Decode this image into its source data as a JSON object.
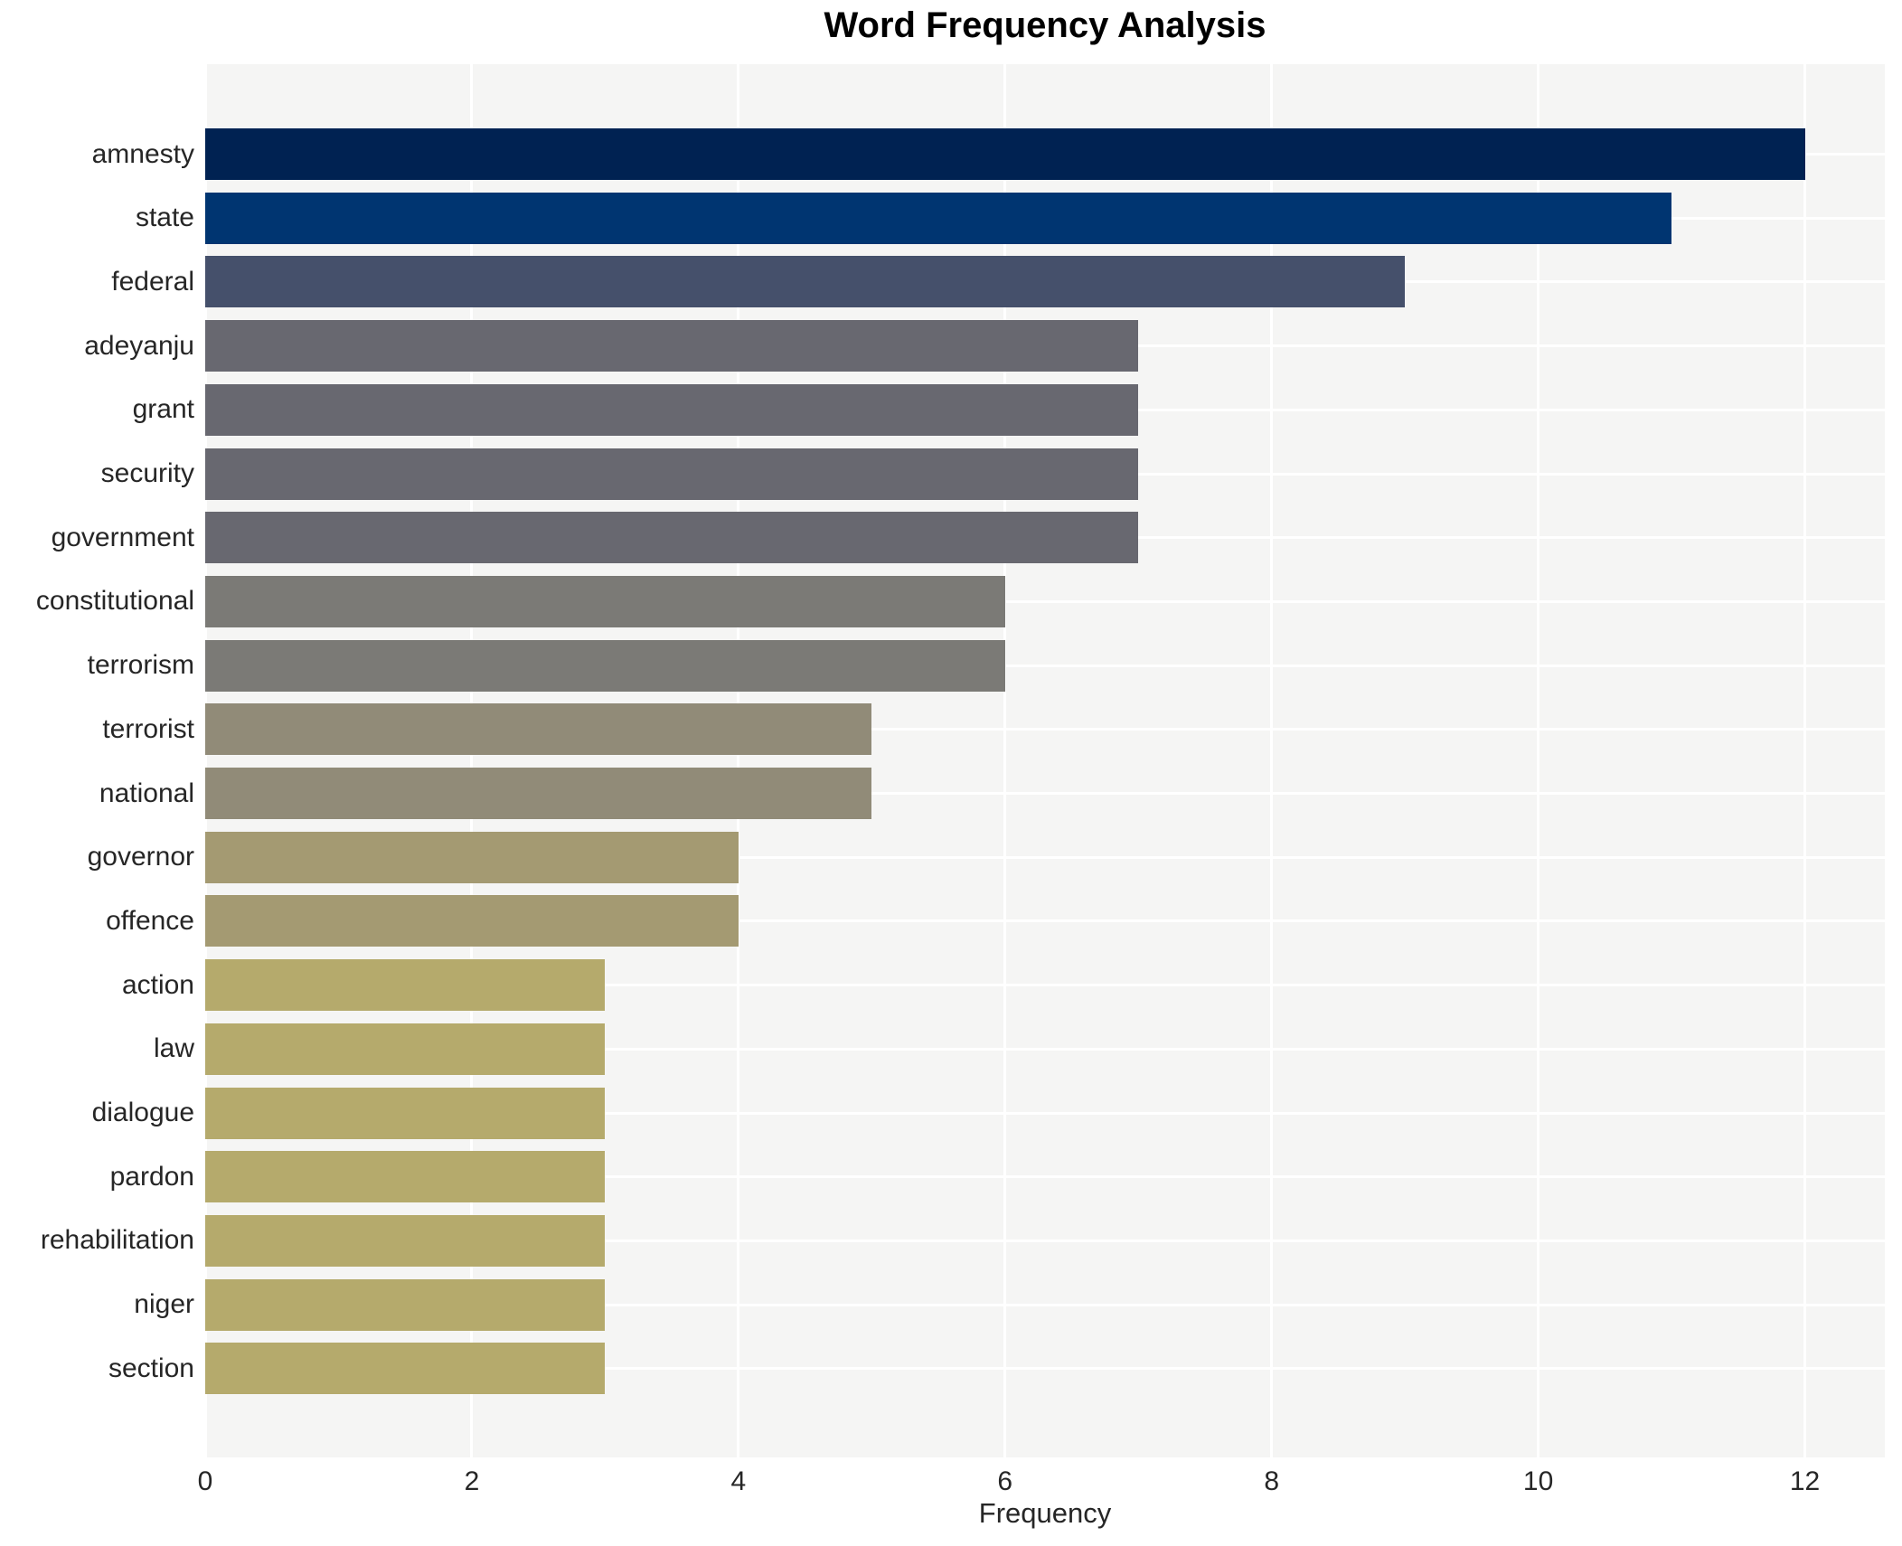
{
  "chart_data": {
    "type": "bar",
    "orientation": "horizontal",
    "title": "Word Frequency Analysis",
    "xlabel": "Frequency",
    "ylabel": "",
    "categories": [
      "amnesty",
      "state",
      "federal",
      "adeyanju",
      "grant",
      "security",
      "government",
      "constitutional",
      "terrorism",
      "terrorist",
      "national",
      "governor",
      "offence",
      "action",
      "law",
      "dialogue",
      "pardon",
      "rehabilitation",
      "niger",
      "section"
    ],
    "values": [
      12,
      11,
      9,
      7,
      7,
      7,
      7,
      6,
      6,
      5,
      5,
      4,
      4,
      3,
      3,
      3,
      3,
      3,
      3,
      3
    ],
    "bar_colors": [
      "#002252",
      "#003571",
      "#45506b",
      "#686870",
      "#686870",
      "#686870",
      "#686870",
      "#7b7a76",
      "#7b7a76",
      "#918b78",
      "#918b78",
      "#a49a72",
      "#a49a72",
      "#b5aa6c",
      "#b5aa6c",
      "#b5aa6c",
      "#b5aa6c",
      "#b5aa6c",
      "#b5aa6c",
      "#b5aa6c"
    ],
    "xticks": [
      0,
      2,
      4,
      6,
      8,
      10,
      12
    ],
    "xlim": [
      0,
      12.6
    ],
    "grid": true,
    "legend": false,
    "colormap": "cividis",
    "style": {
      "plot_bg": "#f5f5f4",
      "grid_color": "#ffffff",
      "tick_label_color": "#262626",
      "title_color": "#000000"
    }
  }
}
